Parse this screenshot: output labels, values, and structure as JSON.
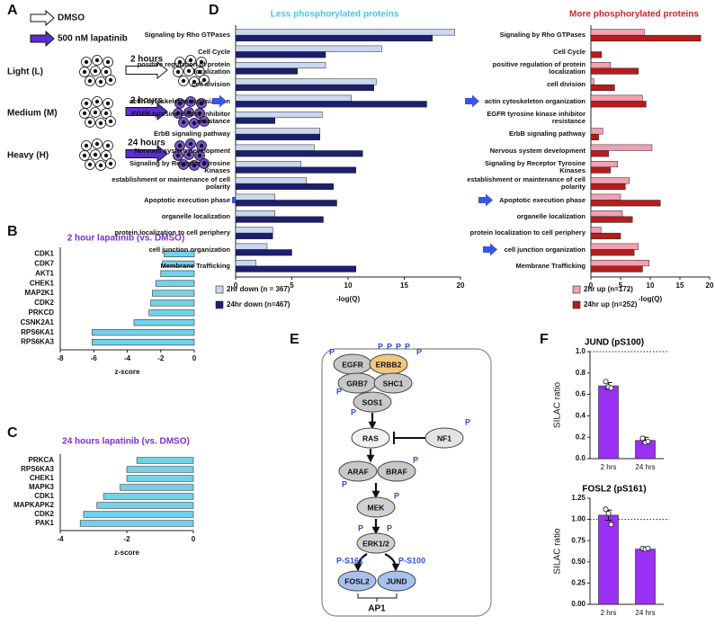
{
  "panel_labels": [
    "A",
    "B",
    "C",
    "D",
    "E",
    "F"
  ],
  "schematic": {
    "legend": [
      "DMSO",
      "500 nM lapatinib"
    ],
    "rows": [
      {
        "label": "Light (L)",
        "time": "2 hours"
      },
      {
        "label": "Medium (M)",
        "time": "2 hours"
      },
      {
        "label": "Heavy (H)",
        "time": "24 hours"
      }
    ]
  },
  "pathway": {
    "nodes": [
      "EGFR",
      "ERBB2",
      "GRB7",
      "SHC1",
      "SOS1",
      "RAS",
      "NF1",
      "ARAF",
      "BRAF",
      "MEK",
      "ERK1/2",
      "FOSL2",
      "JUND"
    ],
    "phospho": "P",
    "sites": [
      "P-S161",
      "P-S100"
    ],
    "complex": "AP1"
  },
  "chart_data": [
    {
      "type": "hbar",
      "title": "2 hour lapatinib (vs. DMSO)",
      "title_color": "#7b2fd0",
      "categories": [
        "CDK1",
        "CDK7",
        "AKT1",
        "CHEK1",
        "MAP2K1",
        "CDK2",
        "PRKCD",
        "CSNK2A1",
        "RPS6KA1",
        "RPS6KA3"
      ],
      "values": [
        -1.8,
        -1.9,
        -2.0,
        -2.3,
        -2.5,
        -2.6,
        -2.7,
        -3.6,
        -6.1,
        -6.1
      ],
      "color": "#72d2ea",
      "xlim": [
        -8,
        0
      ],
      "xticks": [
        -8,
        -6,
        -4,
        -2,
        0
      ],
      "xlabel": "z-score"
    },
    {
      "type": "hbar",
      "title": "24 hours lapatinib (vs. DMSO)",
      "title_color": "#7b2fd0",
      "categories": [
        "PRKCA",
        "RPS6KA3",
        "CHEK1",
        "MAPK3",
        "CDK1",
        "MAPKAPK2",
        "CDK2",
        "PAK1"
      ],
      "values": [
        -1.7,
        -2.0,
        -2.0,
        -2.2,
        -2.7,
        -2.9,
        -3.3,
        -3.4
      ],
      "color": "#72d2ea",
      "xlim": [
        -4,
        0
      ],
      "xticks": [
        -4,
        -2,
        0
      ],
      "xlabel": "z-score"
    },
    {
      "type": "grouped-hbar",
      "title": "Less phosphorylated proteins",
      "title_color": "#4fc3e8",
      "categories": [
        "Signaling by Rho GTPases",
        "Cell Cycle",
        "positive regulation of protein localization",
        "cell division",
        "actin cytoskeleton organization",
        "EGFR tyrosine kinase inhibitor resistance",
        "ErbB signaling pathway",
        "Nervous system development",
        "Signaling by Receptor Tyrosine Kinases",
        "establishment or maintenance of cell polarity",
        "Apoptotic execution phase",
        "organelle localization",
        "protein localization to cell periphery",
        "cell junction organization",
        "Membrane Trafficking"
      ],
      "series": [
        {
          "name": "2hr down (n = 367)",
          "color": "#c9d8ee",
          "values": [
            19.5,
            13,
            8,
            12.5,
            10.3,
            7.7,
            7.5,
            7,
            5.8,
            6.3,
            3.5,
            3.5,
            3.3,
            2.8,
            1.8
          ]
        },
        {
          "name": "24hr down (n=467)",
          "color": "#1b1f6e",
          "values": [
            17.5,
            8,
            5.5,
            12.3,
            17,
            3.5,
            7.5,
            11.3,
            10.7,
            8.7,
            9,
            7.8,
            3.3,
            5,
            10.7
          ]
        }
      ],
      "xlim": [
        0,
        20
      ],
      "xticks": [
        0,
        5,
        10,
        15,
        20
      ],
      "xlabel": "-log(Q)"
    },
    {
      "type": "grouped-hbar",
      "title": "More phosphorylated proteins",
      "title_color": "#c62828",
      "categories": [
        "Signaling by Rho GTPases",
        "Cell Cycle",
        "positive regulation of protein localization",
        "cell division",
        "actin cytoskeleton organization",
        "EGFR tyrosine kinase inhibitor resistance",
        "ErbB signaling pathway",
        "Nervous system development",
        "Signaling by Receptor Tyrosine Kinases",
        "establishment or maintenance of cell polarity",
        "Apoptotic execution phase",
        "organelle localization",
        "protein localization to cell periphery",
        "cell junction organization",
        "Membrane Trafficking"
      ],
      "series": [
        {
          "name": "2hr up (n=172)",
          "color": "#f2a0b4",
          "values": [
            9,
            0,
            3.3,
            0.5,
            8.7,
            0,
            2,
            10.3,
            4.5,
            6.5,
            5,
            5.3,
            1.7,
            8,
            9.8
          ]
        },
        {
          "name": "24hr up (n=252)",
          "color": "#b71c1c",
          "values": [
            18.5,
            1.8,
            8,
            4,
            9.3,
            0,
            1.3,
            3,
            3.3,
            5.8,
            11.7,
            7,
            5,
            7.3,
            8.7
          ]
        }
      ],
      "xlim": [
        0,
        20
      ],
      "xticks": [
        0,
        5,
        10,
        15,
        20
      ],
      "xlabel": "-log(Q)"
    },
    {
      "type": "bar-dots",
      "title": "JUND (pS100)",
      "title_color": "#000000",
      "categories": [
        "2 hrs",
        "24 hrs"
      ],
      "values": [
        0.68,
        0.17
      ],
      "errors": [
        0.03,
        0.03
      ],
      "points": [
        [
          0.72,
          0.67,
          0.66
        ],
        [
          0.19,
          0.15,
          0.16
        ]
      ],
      "color": "#9b30f5",
      "ylim": [
        0,
        1
      ],
      "yticks": [
        {
          "value": 0,
          "label": "0.0"
        },
        {
          "value": 0.2,
          "label": "0.2"
        },
        {
          "value": 0.4,
          "label": "0.4"
        },
        {
          "value": 0.6,
          "label": "0.6"
        },
        {
          "value": 0.8,
          "label": "0.8"
        },
        {
          "value": 1,
          "label": "1.0"
        }
      ],
      "ylabel": "SILAC ratio",
      "reference_line": 1
    },
    {
      "type": "bar-dots",
      "title": "FOSL2 (pS161)",
      "title_color": "#000000",
      "categories": [
        "2 hrs",
        "24 hrs"
      ],
      "values": [
        1.05,
        0.65
      ],
      "errors": [
        0.06,
        0.01
      ],
      "points": [
        [
          1.12,
          1.07,
          0.94
        ],
        [
          0.66,
          0.65,
          0.66
        ]
      ],
      "color": "#9b30f5",
      "ylim": [
        0,
        1.25
      ],
      "yticks": [
        {
          "value": 0,
          "label": "0.00"
        },
        {
          "value": 0.25,
          "label": "0.25"
        },
        {
          "value": 0.5,
          "label": "0.50"
        },
        {
          "value": 0.75,
          "label": "0.75"
        },
        {
          "value": 1,
          "label": "1.00"
        },
        {
          "value": 1.25,
          "label": "1.25"
        }
      ],
      "ylabel": "SILAC ratio",
      "reference_line": 1
    }
  ]
}
